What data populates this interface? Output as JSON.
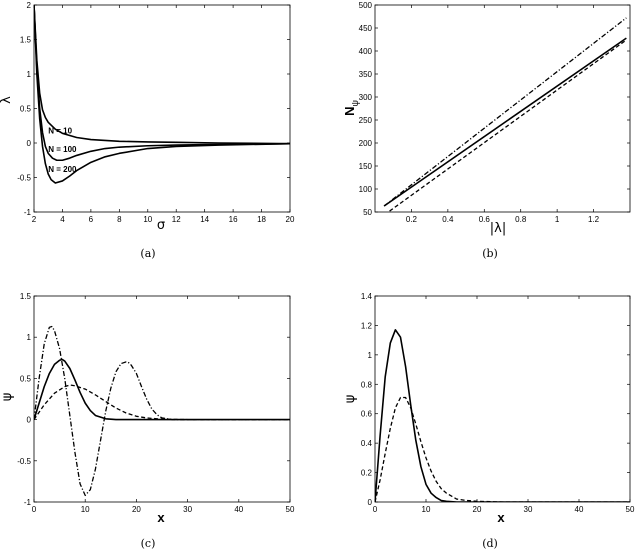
{
  "chart_data": [
    {
      "id": "a",
      "type": "line",
      "caption": "(a)",
      "xlabel": "σ",
      "ylabel": "λ",
      "xlim": [
        2,
        20
      ],
      "ylim": [
        -1,
        2
      ],
      "xticks": [
        2,
        4,
        6,
        8,
        10,
        12,
        14,
        16,
        18,
        20
      ],
      "yticks": [
        -1,
        -0.5,
        0,
        0.5,
        1,
        1.5,
        2
      ],
      "xtick_labels": [
        "2",
        "4",
        "6",
        "8",
        "10",
        "12",
        "14",
        "16",
        "18",
        "20"
      ],
      "ytick_labels": [
        "-1",
        "-0.5",
        "0",
        "0.5",
        "1",
        "1.5",
        "2"
      ],
      "grid": false,
      "annotations": [
        {
          "text": "N = 10",
          "x": 3.0,
          "y": 0.18
        },
        {
          "text": "N = 100",
          "x": 3.0,
          "y": -0.09
        },
        {
          "text": "N = 200",
          "x": 3.0,
          "y": -0.38
        }
      ],
      "series": [
        {
          "style": "solid",
          "x": [
            2.0,
            2.2,
            2.4,
            2.6,
            2.8,
            3.0,
            3.5,
            4.0,
            5.0,
            6.0,
            8.0,
            10.0,
            12.0,
            15.0,
            20.0
          ],
          "y": [
            2.0,
            1.2,
            0.72,
            0.48,
            0.37,
            0.3,
            0.2,
            0.14,
            0.08,
            0.05,
            0.025,
            0.015,
            0.01,
            0.0,
            -0.01
          ]
        },
        {
          "style": "solid",
          "x": [
            2.0,
            2.2,
            2.4,
            2.6,
            2.8,
            3.0,
            3.3,
            3.6,
            4.0,
            4.5,
            5.0,
            6.0,
            7.0,
            8.0,
            10.0,
            12.0,
            15.0,
            20.0
          ],
          "y": [
            2.0,
            1.1,
            0.5,
            0.15,
            -0.05,
            -0.15,
            -0.22,
            -0.25,
            -0.25,
            -0.22,
            -0.18,
            -0.12,
            -0.08,
            -0.06,
            -0.04,
            -0.03,
            -0.02,
            -0.01
          ]
        },
        {
          "style": "solid",
          "x": [
            2.0,
            2.2,
            2.4,
            2.6,
            2.8,
            3.0,
            3.2,
            3.5,
            4.0,
            4.5,
            5.0,
            6.0,
            7.0,
            8.0,
            10.0,
            12.0,
            15.0,
            20.0
          ],
          "y": [
            2.0,
            1.0,
            0.35,
            -0.05,
            -0.3,
            -0.45,
            -0.53,
            -0.58,
            -0.55,
            -0.48,
            -0.4,
            -0.28,
            -0.2,
            -0.15,
            -0.08,
            -0.05,
            -0.03,
            -0.01
          ]
        }
      ]
    },
    {
      "id": "b",
      "type": "line",
      "caption": "(b)",
      "xlabel": "|λ|",
      "ylabel": "N_ψ",
      "xlim": [
        0,
        1.4
      ],
      "ylim": [
        50,
        500
      ],
      "xticks": [
        0.2,
        0.4,
        0.6,
        0.8,
        1,
        1.2
      ],
      "yticks": [
        50,
        100,
        150,
        200,
        250,
        300,
        350,
        400,
        450,
        500
      ],
      "xtick_labels": [
        "0.2",
        "0.4",
        "0.6",
        "0.8",
        "1",
        "1.2"
      ],
      "ytick_labels": [
        "50",
        "100",
        "150",
        "200",
        "250",
        "300",
        "350",
        "400",
        "450",
        "500"
      ],
      "grid": false,
      "series": [
        {
          "style": "solid",
          "x": [
            0.05,
            1.38
          ],
          "y": [
            63,
            428
          ]
        },
        {
          "style": "dashed",
          "x": [
            0.08,
            1.38
          ],
          "y": [
            52,
            424
          ]
        },
        {
          "style": "dashdot",
          "x": [
            0.05,
            1.38
          ],
          "y": [
            63,
            472
          ]
        }
      ]
    },
    {
      "id": "c",
      "type": "line",
      "caption": "(c)",
      "xlabel": "x",
      "ylabel": "ψ",
      "xlim": [
        0,
        50
      ],
      "ylim": [
        -1,
        1.5
      ],
      "xticks": [
        0,
        10,
        20,
        30,
        40,
        50
      ],
      "yticks": [
        -1,
        -0.5,
        0,
        0.5,
        1,
        1.5
      ],
      "xtick_labels": [
        "0",
        "10",
        "20",
        "30",
        "40",
        "50"
      ],
      "ytick_labels": [
        "-1",
        "-0.5",
        "0",
        "0.5",
        "1",
        "1.5"
      ],
      "grid": false,
      "series": [
        {
          "style": "solid",
          "x": [
            0,
            1,
            2,
            3,
            4,
            5,
            5.5,
            6,
            7,
            8,
            9,
            10,
            11,
            12,
            14,
            16,
            20,
            30,
            50
          ],
          "y": [
            0.0,
            0.2,
            0.4,
            0.56,
            0.67,
            0.72,
            0.73,
            0.71,
            0.62,
            0.48,
            0.33,
            0.2,
            0.11,
            0.05,
            0.01,
            0.0,
            0.0,
            0.0,
            0.0
          ]
        },
        {
          "style": "dashed",
          "x": [
            0,
            2,
            4,
            6,
            7,
            8,
            10,
            12,
            14,
            16,
            18,
            20,
            22,
            25,
            30,
            40,
            50
          ],
          "y": [
            0.0,
            0.18,
            0.32,
            0.4,
            0.42,
            0.41,
            0.37,
            0.3,
            0.22,
            0.14,
            0.08,
            0.04,
            0.02,
            0.005,
            0.0,
            0.0,
            0.0
          ]
        },
        {
          "style": "dashdot",
          "x": [
            0,
            1,
            2,
            3,
            3.5,
            4,
            5,
            6,
            7,
            8,
            9,
            10,
            11,
            12,
            13,
            14,
            15,
            16,
            17,
            18,
            18.5,
            19,
            20,
            21,
            22,
            23,
            24,
            25,
            27,
            30,
            50
          ],
          "y": [
            0.0,
            0.5,
            0.92,
            1.12,
            1.13,
            1.08,
            0.86,
            0.5,
            0.05,
            -0.4,
            -0.78,
            -0.92,
            -0.85,
            -0.6,
            -0.25,
            0.1,
            0.38,
            0.58,
            0.68,
            0.7,
            0.69,
            0.66,
            0.56,
            0.4,
            0.25,
            0.13,
            0.06,
            0.02,
            0.0,
            0.0,
            0.0
          ]
        }
      ]
    },
    {
      "id": "d",
      "type": "line",
      "caption": "(d)",
      "xlabel": "x",
      "ylabel": "ψ",
      "xlim": [
        0,
        50
      ],
      "ylim": [
        0,
        1.4
      ],
      "xticks": [
        0,
        10,
        20,
        30,
        40,
        50
      ],
      "yticks": [
        0,
        0.2,
        0.4,
        0.6,
        0.8,
        1,
        1.2,
        1.4
      ],
      "xtick_labels": [
        "0",
        "10",
        "20",
        "30",
        "40",
        "50"
      ],
      "ytick_labels": [
        "0",
        "0.2",
        "0.4",
        "0.6",
        "0.8",
        "1",
        "1.2",
        "1.4"
      ],
      "grid": false,
      "series": [
        {
          "style": "solid",
          "x": [
            0,
            1,
            2,
            3,
            4,
            5,
            6,
            7,
            8,
            9,
            10,
            11,
            12,
            13,
            14,
            16,
            20,
            30,
            50
          ],
          "y": [
            0.0,
            0.45,
            0.85,
            1.08,
            1.17,
            1.12,
            0.92,
            0.66,
            0.42,
            0.24,
            0.12,
            0.06,
            0.03,
            0.01,
            0.005,
            0.0,
            0.0,
            0.0,
            0.0
          ]
        },
        {
          "style": "dashed",
          "x": [
            0,
            1,
            2,
            3,
            4,
            5,
            6,
            7,
            8,
            9,
            10,
            11,
            12,
            13,
            14,
            16,
            18,
            20,
            25,
            30,
            50
          ],
          "y": [
            0.0,
            0.15,
            0.33,
            0.5,
            0.64,
            0.71,
            0.71,
            0.64,
            0.53,
            0.41,
            0.3,
            0.21,
            0.14,
            0.09,
            0.06,
            0.02,
            0.01,
            0.005,
            0.0,
            0.0,
            0.0
          ]
        }
      ]
    }
  ]
}
